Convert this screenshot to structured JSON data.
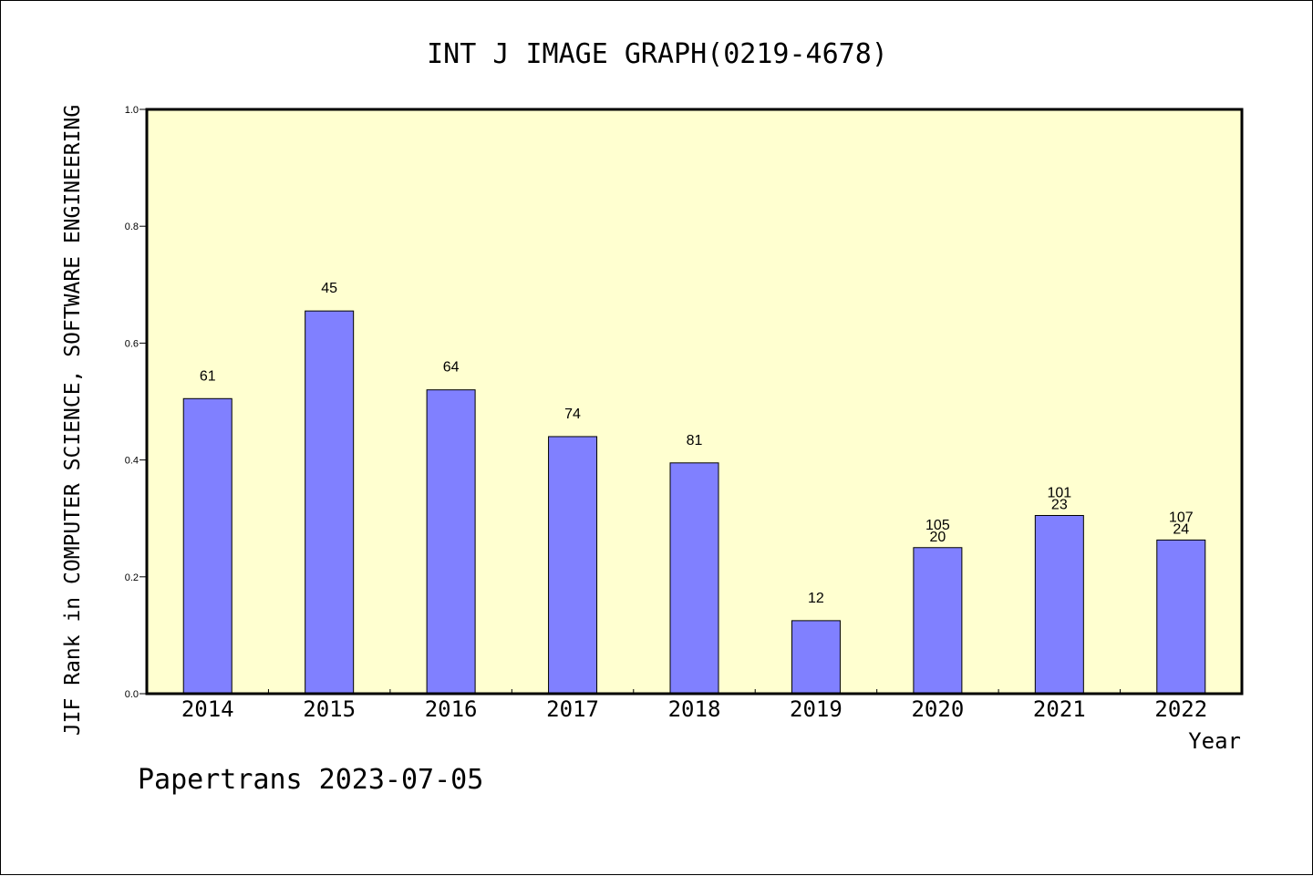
{
  "chart_data": {
    "type": "bar",
    "title": "INT J IMAGE GRAPH(0219-4678)",
    "xlabel": "Year",
    "ylabel": "JIF Rank in COMPUTER SCIENCE, SOFTWARE ENGINEERING",
    "ylim": [
      0,
      1.0
    ],
    "yticks": [
      "0.0",
      "0.2",
      "0.4",
      "0.6",
      "0.8",
      "1.0"
    ],
    "categories": [
      "2014",
      "2015",
      "2016",
      "2017",
      "2018",
      "2019",
      "2020",
      "2021",
      "2022"
    ],
    "values": [
      0.505,
      0.655,
      0.52,
      0.44,
      0.395,
      0.125,
      0.25,
      0.305,
      0.263
    ],
    "labels": [
      [
        "61"
      ],
      [
        "45"
      ],
      [
        "64"
      ],
      [
        "74"
      ],
      [
        "81"
      ],
      [
        "12"
      ],
      [
        "105",
        "20"
      ],
      [
        "101",
        "23"
      ],
      [
        "107",
        "24"
      ]
    ],
    "grid": false,
    "colors": {
      "bar": "#8080ff",
      "plot_bg": "#ffffd0",
      "axis": "#000000"
    }
  },
  "footer": {
    "text": "Papertrans 2023-07-05"
  }
}
